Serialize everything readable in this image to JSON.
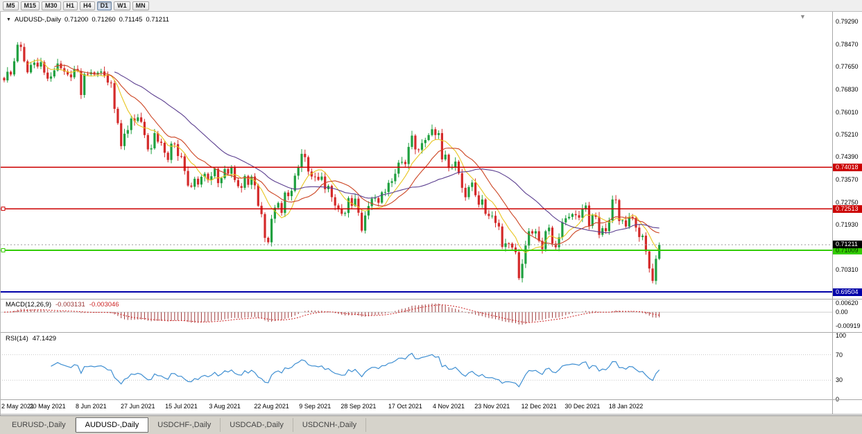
{
  "toolbar": {
    "timeframes": [
      "M5",
      "M15",
      "M30",
      "H1",
      "H4",
      "D1",
      "W1",
      "MN"
    ],
    "active": "D1"
  },
  "icons": {
    "scroll_arrow": "▼",
    "symbol_dropdown": "▼"
  },
  "symbol_header": {
    "symbol": "AUDUSD-,Daily",
    "open": "0.71200",
    "high": "0.71260",
    "low": "0.71145",
    "close": "0.71211"
  },
  "price_axis": {
    "ticks": [
      "0.79290",
      "0.78470",
      "0.77650",
      "0.76830",
      "0.76010",
      "0.75210",
      "0.74390",
      "0.73570",
      "0.72750",
      "0.71930",
      "0.71110",
      "0.70310",
      "0.69490"
    ]
  },
  "levels": [
    {
      "label": "0.74018",
      "value": 0.74018,
      "color": "#cc0000",
      "text": "#ffffff",
      "width": 1.4,
      "handle": false
    },
    {
      "label": "0.72513",
      "value": 0.72513,
      "color": "#cc0000",
      "text": "#ffffff",
      "width": 1.4,
      "handle": true
    },
    {
      "label": "0.71009",
      "value": 0.71009,
      "color": "#33cc00",
      "text": "#003300",
      "width": 2,
      "handle": true
    },
    {
      "label": "0.69504",
      "value": 0.69504,
      "color": "#0000a8",
      "text": "#ffffff",
      "width": 2.4,
      "handle": false
    }
  ],
  "current_price": {
    "label": "0.71211",
    "value": 0.71211,
    "bg": "#000000",
    "text": "#ffffff"
  },
  "colors": {
    "up": "#1fa03f",
    "down": "#d42a2a",
    "background": "#ffffff",
    "axis_text": "#000000"
  },
  "moving_averages": [
    {
      "period": 8,
      "color": "#e8c520"
    },
    {
      "period": 16,
      "color": "#cc4422"
    },
    {
      "period": 34,
      "color": "#5b3e8f"
    }
  ],
  "macd_panel": {
    "label": "MACD(12,26,9)",
    "main_value": "-0.003131",
    "signal_value": "-0.003046",
    "axis_ticks": [
      "0.00620",
      "0.00",
      "-0.00919"
    ],
    "histogram_color": "#a03a3a",
    "signal_color": "#cc2222"
  },
  "rsi_panel": {
    "label": "RSI(14)",
    "value": "47.1429",
    "axis_ticks": [
      "100",
      "70",
      "30",
      "0"
    ],
    "levels": [
      70,
      30
    ],
    "line_color": "#3f8fd2"
  },
  "tabs": [
    {
      "label": "EURUSD-,Daily",
      "active": false
    },
    {
      "label": "AUDUSD-,Daily",
      "active": true
    },
    {
      "label": "USDCHF-,Daily",
      "active": false
    },
    {
      "label": "USDCAD-,Daily",
      "active": false
    },
    {
      "label": "USDCNH-,Daily",
      "active": false
    }
  ],
  "chart_data": {
    "type": "candlestick",
    "symbol": "AUDUSD",
    "timeframe": "Daily",
    "y_axis_range": [
      0.6935,
      0.7959
    ],
    "x_labels": [
      "2 May 2021",
      "20 May 2021",
      "8 Jun 2021",
      "27 Jun 2021",
      "15 Jul 2021",
      "3 Aug 2021",
      "22 Aug 2021",
      "9 Sep 2021",
      "28 Sep 2021",
      "17 Oct 2021",
      "4 Nov 2021",
      "23 Nov 2021",
      "12 Dec 2021",
      "30 Dec 2021",
      "18 Jan 2022"
    ],
    "x_label_indices": [
      0,
      13,
      26,
      40,
      53,
      66,
      80,
      93,
      106,
      120,
      133,
      146,
      160,
      173,
      186
    ],
    "closes": [
      0.7716,
      0.7747,
      0.7737,
      0.7785,
      0.7845,
      0.7837,
      0.7785,
      0.7745,
      0.7772,
      0.778,
      0.7766,
      0.7782,
      0.7744,
      0.7722,
      0.773,
      0.7752,
      0.7777,
      0.776,
      0.7748,
      0.7737,
      0.7727,
      0.7757,
      0.775,
      0.7663,
      0.7739,
      0.7738,
      0.7745,
      0.7737,
      0.7744,
      0.7748,
      0.7734,
      0.7708,
      0.7706,
      0.7613,
      0.7561,
      0.7478,
      0.7523,
      0.7536,
      0.7578,
      0.7569,
      0.7582,
      0.7566,
      0.7518,
      0.7466,
      0.747,
      0.7525,
      0.7494,
      0.749,
      0.7454,
      0.7428,
      0.7487,
      0.7485,
      0.7442,
      0.7441,
      0.7388,
      0.7335,
      0.7331,
      0.736,
      0.7339,
      0.7367,
      0.7378,
      0.7355,
      0.7369,
      0.7396,
      0.7344,
      0.7362,
      0.7395,
      0.7378,
      0.74,
      0.7355,
      0.7333,
      0.7327,
      0.737,
      0.7338,
      0.7368,
      0.7336,
      0.7262,
      0.7232,
      0.7146,
      0.713,
      0.7215,
      0.7255,
      0.7272,
      0.7236,
      0.731,
      0.7297,
      0.7316,
      0.7371,
      0.74,
      0.745,
      0.7438,
      0.7386,
      0.7368,
      0.7367,
      0.7356,
      0.7368,
      0.7322,
      0.7334,
      0.7293,
      0.7263,
      0.7251,
      0.7233,
      0.7236,
      0.729,
      0.7262,
      0.7288,
      0.7237,
      0.7172,
      0.7227,
      0.7261,
      0.7288,
      0.729,
      0.7273,
      0.7311,
      0.7312,
      0.7345,
      0.7351,
      0.7378,
      0.7418,
      0.7421,
      0.7413,
      0.7475,
      0.7516,
      0.7466,
      0.7465,
      0.7489,
      0.75,
      0.7518,
      0.7539,
      0.7518,
      0.7525,
      0.743,
      0.7447,
      0.7399,
      0.7401,
      0.7422,
      0.738,
      0.7327,
      0.7293,
      0.733,
      0.7346,
      0.73,
      0.7266,
      0.7285,
      0.7233,
      0.7225,
      0.7226,
      0.72,
      0.7187,
      0.7113,
      0.7126,
      0.7125,
      0.7111,
      0.7094,
      0.7,
      0.7052,
      0.7118,
      0.717,
      0.7162,
      0.717,
      0.7135,
      0.7105,
      0.717,
      0.7183,
      0.7125,
      0.7112,
      0.7148,
      0.7202,
      0.7217,
      0.7222,
      0.7232,
      0.7228,
      0.7219,
      0.7252,
      0.7263,
      0.7189,
      0.7228,
      0.7222,
      0.7157,
      0.7181,
      0.717,
      0.7209,
      0.7285,
      0.7283,
      0.7207,
      0.7209,
      0.7187,
      0.7222,
      0.7218,
      0.7183,
      0.7149,
      0.7154,
      0.7097,
      0.7035,
      0.699,
      0.707,
      0.7121
    ]
  }
}
